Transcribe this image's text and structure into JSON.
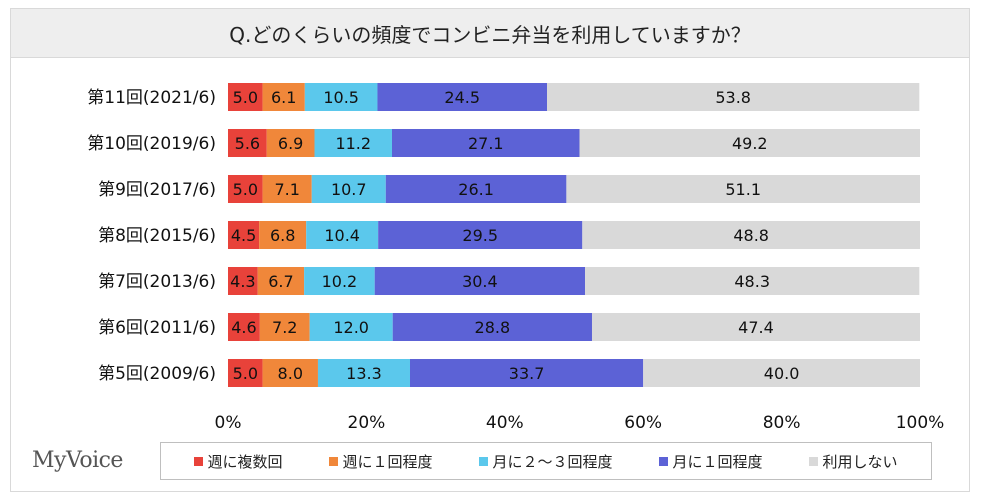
{
  "chart_data": {
    "type": "bar",
    "orientation": "horizontal",
    "stacked": true,
    "title": "Q.どのくらいの頻度でコンビニ弁当を利用していますか？",
    "categories": [
      "第11回(2021/6)",
      "第10回(2019/6)",
      "第9回(2017/6)",
      "第8回(2015/6)",
      "第7回(2013/6)",
      "第6回(2011/6)",
      "第5回(2009/6)"
    ],
    "series": [
      {
        "name": "週に複数回",
        "color": "#e8423a",
        "values": [
          5.0,
          5.6,
          5.0,
          4.5,
          4.3,
          4.6,
          5.0
        ]
      },
      {
        "name": "週に１回程度",
        "color": "#f0873a",
        "values": [
          6.1,
          6.9,
          7.1,
          6.8,
          6.7,
          7.2,
          8.0
        ]
      },
      {
        "name": "月に２～３回程度",
        "color": "#5bc8ec",
        "values": [
          10.5,
          11.2,
          10.7,
          10.4,
          10.2,
          12.0,
          13.3
        ]
      },
      {
        "name": "月に１回程度",
        "color": "#5c62d6",
        "values": [
          24.5,
          27.1,
          26.1,
          29.5,
          30.4,
          28.8,
          33.7
        ]
      },
      {
        "name": "利用しない",
        "color": "#d9d9d9",
        "values": [
          53.8,
          49.2,
          51.1,
          48.8,
          48.3,
          47.4,
          40.0
        ]
      }
    ],
    "value_labels": [
      [
        "5.0",
        "6.1",
        "10.5",
        "24.5",
        "53.8"
      ],
      [
        "5.6",
        "6.9",
        "11.2",
        "27.1",
        "49.2"
      ],
      [
        "5.0",
        "7.1",
        "10.7",
        "26.1",
        "51.1"
      ],
      [
        "4.5",
        "6.8",
        "10.4",
        "29.5",
        "48.8"
      ],
      [
        "4.3",
        "6.7",
        "10.2",
        "30.4",
        "48.3"
      ],
      [
        "4.6",
        "7.2",
        "12.0",
        "28.8",
        "47.4"
      ],
      [
        "5.0",
        "8.0",
        "13.3",
        "33.7",
        "40.0"
      ]
    ],
    "xlim": [
      0,
      100
    ],
    "x_ticks": [
      "0%",
      "20%",
      "40%",
      "60%",
      "80%",
      "100%"
    ],
    "x_tick_values": [
      0,
      20,
      40,
      60,
      80,
      100
    ],
    "grid": false,
    "legend_position": "bottom"
  },
  "brand": {
    "logo_text": "MyVoice"
  }
}
